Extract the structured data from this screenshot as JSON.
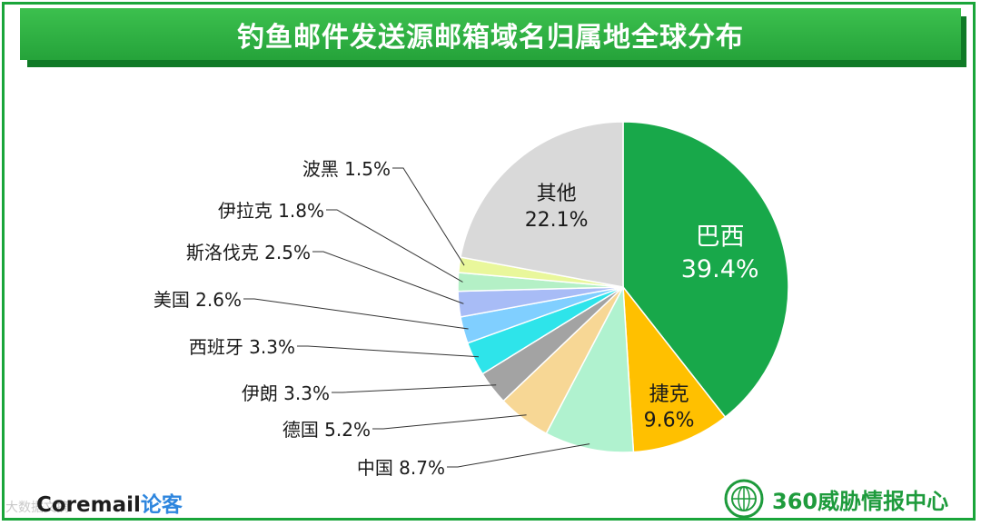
{
  "title": "钓鱼邮件发送源邮箱域名归属地全球分布",
  "chart_data": {
    "type": "pie",
    "title": "钓鱼邮件发送源邮箱域名归属地全球分布",
    "slices": [
      {
        "label": "巴西",
        "value": 39.4,
        "value_label": "39.4%",
        "color": "#18a84a",
        "placement": "inside",
        "text_color": "#ffffff"
      },
      {
        "label": "捷克",
        "value": 9.6,
        "value_label": "9.6%",
        "color": "#ffc000",
        "placement": "inside",
        "text_color": "#1a1a1a"
      },
      {
        "label": "中国",
        "value": 8.7,
        "value_label": "8.7%",
        "color": "#b0f2cf",
        "placement": "outside"
      },
      {
        "label": "德国",
        "value": 5.2,
        "value_label": "5.2%",
        "color": "#f7d795",
        "placement": "outside"
      },
      {
        "label": "伊朗",
        "value": 3.3,
        "value_label": "3.3%",
        "color": "#a3a3a3",
        "placement": "outside"
      },
      {
        "label": "西班牙",
        "value": 3.3,
        "value_label": "3.3%",
        "color": "#2ee4ea",
        "placement": "outside"
      },
      {
        "label": "美国",
        "value": 2.6,
        "value_label": "2.6%",
        "color": "#80cfff",
        "placement": "outside"
      },
      {
        "label": "斯洛伐克",
        "value": 2.5,
        "value_label": "2.5%",
        "color": "#a8bcf6",
        "placement": "outside"
      },
      {
        "label": "伊拉克",
        "value": 1.8,
        "value_label": "1.8%",
        "color": "#b4f0c6",
        "placement": "outside"
      },
      {
        "label": "波黑",
        "value": 1.5,
        "value_label": "1.5%",
        "color": "#e9f79b",
        "placement": "outside"
      },
      {
        "label": "其他",
        "value": 22.1,
        "value_label": "22.1%",
        "color": "#d9d9d9",
        "placement": "inside",
        "text_color": "#1a1a1a"
      }
    ],
    "start": "12 o'clock",
    "direction": "clockwise",
    "legend": "none"
  },
  "branding": {
    "left_main": "Coremail",
    "left_accent": "论客",
    "watermark": "大数据文摘",
    "right": "360威胁情报中心"
  }
}
